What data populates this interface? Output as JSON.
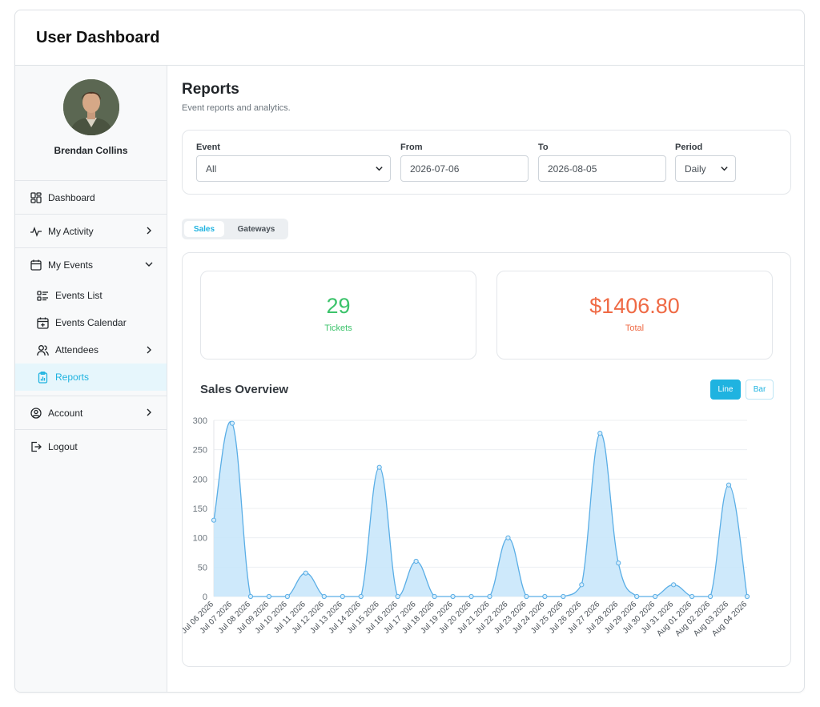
{
  "app": {
    "title": "User Dashboard"
  },
  "profile": {
    "name": "Brendan Collins"
  },
  "nav": {
    "dashboard": "Dashboard",
    "my_activity": "My Activity",
    "my_events": "My Events",
    "events_list": "Events List",
    "events_calendar": "Events Calendar",
    "attendees": "Attendees",
    "reports": "Reports",
    "account": "Account",
    "logout": "Logout"
  },
  "page": {
    "title": "Reports",
    "subtitle": "Event reports and analytics."
  },
  "filters": {
    "event_label": "Event",
    "event_value": "All",
    "from_label": "From",
    "from_value": "2026-07-06",
    "to_label": "To",
    "to_value": "2026-08-05",
    "period_label": "Period",
    "period_value": "Daily"
  },
  "tabs": {
    "sales": "Sales",
    "gateways": "Gateways",
    "active": "sales"
  },
  "stats": {
    "tickets_value": "29",
    "tickets_label": "Tickets",
    "total_value": "$1406.80",
    "total_label": "Total"
  },
  "chart_toggle": {
    "line": "Line",
    "bar": "Bar",
    "active": "line"
  },
  "colors": {
    "accent": "#1fb3e0",
    "green": "#3cc36b",
    "orange": "#ef6a45",
    "chart_fill": "#c9e7fb",
    "chart_line": "#5aaee6"
  },
  "chart_data": {
    "type": "area",
    "title": "Sales Overview",
    "categories": [
      "Jul 06 2026",
      "Jul 07 2026",
      "Jul 08 2026",
      "Jul 09 2026",
      "Jul 10 2026",
      "Jul 11 2026",
      "Jul 12 2026",
      "Jul 13 2026",
      "Jul 14 2026",
      "Jul 15 2026",
      "Jul 16 2026",
      "Jul 17 2026",
      "Jul 18 2026",
      "Jul 19 2026",
      "Jul 20 2026",
      "Jul 21 2026",
      "Jul 22 2026",
      "Jul 23 2026",
      "Jul 24 2026",
      "Jul 25 2026",
      "Jul 26 2026",
      "Jul 27 2026",
      "Jul 28 2026",
      "Jul 29 2026",
      "Jul 30 2026",
      "Jul 31 2026",
      "Aug 01 2026",
      "Aug 02 2026",
      "Aug 03 2026",
      "Aug 04 2026"
    ],
    "values": [
      130,
      295,
      0,
      0,
      0,
      40,
      0,
      0,
      0,
      220,
      0,
      60,
      0,
      0,
      0,
      0,
      100,
      0,
      0,
      0,
      20,
      278,
      57,
      0,
      0,
      20,
      0,
      0,
      190,
      0
    ],
    "ylim": [
      0,
      300
    ],
    "yticks": [
      0,
      50,
      100,
      150,
      200,
      250,
      300
    ],
    "grid": true
  }
}
